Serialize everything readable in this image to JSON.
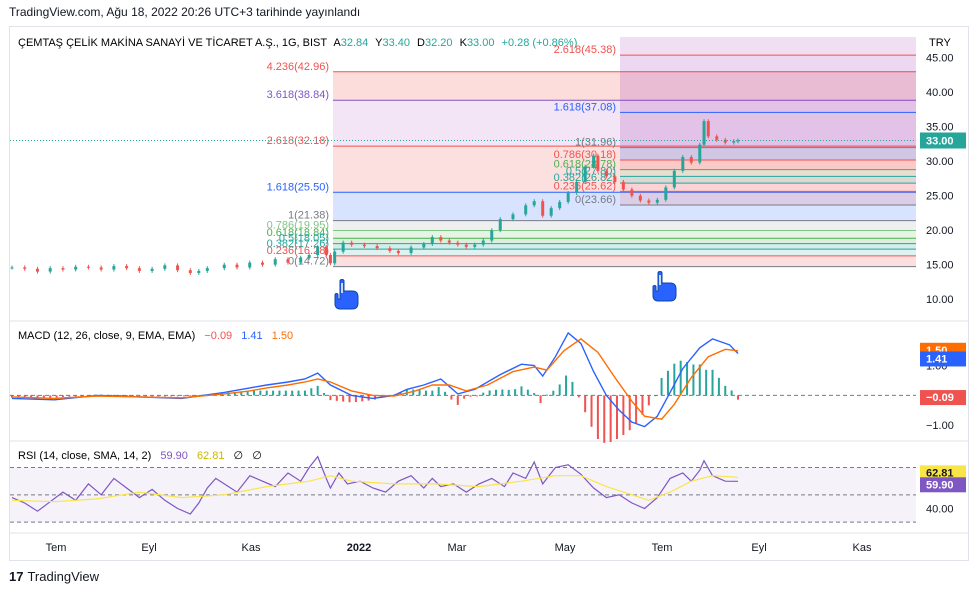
{
  "header": {
    "published": "TradingView.com, Ağu 18, 2022 20:26 UTC+3 tarihinde yayınlandı"
  },
  "footer": {
    "brand": "TradingView",
    "logo": "17"
  },
  "legend": {
    "symbol": "ÇEMTAŞ ÇELİK MAKİNA SANAYİ VE TİCARET A.Ş., 1G, BIST",
    "o_label": "A",
    "o": "32.84",
    "h_label": "Y",
    "h": "33.40",
    "l_label": "D",
    "l": "32.20",
    "c_label": "K",
    "c": "33.00",
    "change": "+0.28 (+0.86%)"
  },
  "currency": "TRY",
  "macd_legend": {
    "name": "MACD (12, 26, close, 9, EMA, EMA)",
    "v1": "−0.09",
    "v2": "1.41",
    "v3": "1.50"
  },
  "rsi_legend": {
    "name": "RSI (14, close, SMA, 14, 2)",
    "v1": "59.90",
    "v2": "62.81",
    "v3": "∅",
    "v4": "∅"
  },
  "colors": {
    "up": "#26a69a",
    "down": "#ef5350",
    "macd": "#2962ff",
    "signal": "#ff6d00",
    "rsi": "#7e57c2",
    "rsi_ma": "#f9e547"
  },
  "chart_data": [
    {
      "type": "candlestick",
      "title": "ÇEMTAŞ ÇELİK MAKİNA SANAYİ VE TİCARET A.Ş., 1G, BIST",
      "ylim": [
        8,
        48
      ],
      "y_ticks": [
        "45.00",
        "40.00",
        "35.00",
        "30.00",
        "25.00",
        "20.00",
        "15.00",
        "10.00"
      ],
      "x_ticks": [
        "Tem",
        "Eyl",
        "Kas",
        "2022",
        "Mar",
        "May",
        "Tem",
        "Eyl",
        "Kas"
      ],
      "last_price": "33.00",
      "price_path": [
        [
          0,
          14.6
        ],
        [
          6,
          14.4
        ],
        [
          12,
          14.0
        ],
        [
          18,
          14.5
        ],
        [
          24,
          14.3
        ],
        [
          30,
          14.7
        ],
        [
          36,
          14.6
        ],
        [
          42,
          14.3
        ],
        [
          48,
          14.8
        ],
        [
          54,
          14.5
        ],
        [
          60,
          14.1
        ],
        [
          66,
          14.4
        ],
        [
          72,
          14.9
        ],
        [
          78,
          14.2
        ],
        [
          84,
          13.8
        ],
        [
          88,
          14.1
        ],
        [
          92,
          14.5
        ],
        [
          100,
          15.0
        ],
        [
          106,
          14.6
        ],
        [
          112,
          15.3
        ],
        [
          118,
          15.0
        ],
        [
          124,
          15.8
        ],
        [
          130,
          15.3
        ],
        [
          136,
          16.0
        ],
        [
          140,
          16.4
        ],
        [
          144,
          17.6
        ],
        [
          148,
          16.4
        ],
        [
          150,
          15.2
        ],
        [
          152,
          16.9
        ],
        [
          156,
          18.2
        ],
        [
          160,
          17.9
        ],
        [
          166,
          17.7
        ],
        [
          172,
          17.4
        ],
        [
          178,
          17.0
        ],
        [
          182,
          16.7
        ],
        [
          188,
          17.5
        ],
        [
          194,
          18.0
        ],
        [
          198,
          19.0
        ],
        [
          202,
          18.5
        ],
        [
          206,
          18.2
        ],
        [
          210,
          17.9
        ],
        [
          214,
          17.6
        ],
        [
          218,
          17.9
        ],
        [
          222,
          18.5
        ],
        [
          226,
          20.0
        ],
        [
          230,
          21.6
        ],
        [
          236,
          22.3
        ],
        [
          242,
          23.6
        ],
        [
          246,
          24.2
        ],
        [
          250,
          22.1
        ],
        [
          254,
          23.2
        ],
        [
          258,
          24.1
        ],
        [
          262,
          25.4
        ],
        [
          266,
          27.0
        ],
        [
          270,
          29.2
        ],
        [
          274,
          30.8
        ],
        [
          276,
          28.6
        ],
        [
          280,
          27.8
        ],
        [
          284,
          27.0
        ],
        [
          288,
          25.9
        ],
        [
          292,
          25.0
        ],
        [
          296,
          24.3
        ],
        [
          300,
          24.0
        ],
        [
          304,
          24.4
        ],
        [
          308,
          26.2
        ],
        [
          312,
          28.6
        ],
        [
          316,
          30.6
        ],
        [
          320,
          29.8
        ],
        [
          324,
          32.4
        ],
        [
          326,
          35.8
        ],
        [
          328,
          33.6
        ],
        [
          332,
          33.1
        ],
        [
          336,
          32.7
        ],
        [
          340,
          32.9
        ],
        [
          342,
          33.0
        ]
      ],
      "fib_left": {
        "levels": [
          {
            "ratio": "4.236",
            "price": "42.96",
            "value": 42.96
          },
          {
            "ratio": "3.618",
            "price": "38.84",
            "value": 38.84
          },
          {
            "ratio": "2.618",
            "price": "32.18",
            "value": 32.18
          },
          {
            "ratio": "1.618",
            "price": "25.50",
            "value": 25.5
          },
          {
            "ratio": "1",
            "price": "21.38",
            "value": 21.38
          },
          {
            "ratio": "0.786",
            "price": "19.95",
            "value": 19.95
          },
          {
            "ratio": "0.618",
            "price": "18.84",
            "value": 18.84
          },
          {
            "ratio": "0.5",
            "price": "18.05",
            "value": 18.05
          },
          {
            "ratio": "0.382",
            "price": "17.26",
            "value": 17.26
          },
          {
            "ratio": "0.236",
            "price": "16.28",
            "value": 16.28
          },
          {
            "ratio": "0",
            "price": "14.72",
            "value": 14.72
          }
        ]
      },
      "fib_right": {
        "levels": [
          {
            "ratio": "2.618",
            "price": "45.38",
            "value": 45.38
          },
          {
            "ratio": "1.618",
            "price": "37.08",
            "value": 37.08
          },
          {
            "ratio": "1",
            "price": "31.96",
            "value": 31.96
          },
          {
            "ratio": "0.786",
            "price": "30.18",
            "value": 30.18
          },
          {
            "ratio": "0.618",
            "price": "28.78",
            "value": 28.78
          },
          {
            "ratio": "0.5",
            "price": "27.80",
            "value": 27.8
          },
          {
            "ratio": "0.382",
            "price": "26.82",
            "value": 26.82
          },
          {
            "ratio": "0.236",
            "price": "25.62",
            "value": 25.62
          },
          {
            "ratio": "0",
            "price": "23.66",
            "value": 23.66
          }
        ]
      }
    },
    {
      "type": "line",
      "title": "MACD (12, 26, close, 9, EMA, EMA)",
      "ylim": [
        -1.4,
        2.3
      ],
      "y_ticks": [
        "1.00",
        "−1.00"
      ],
      "badges": [
        {
          "label": "1.50",
          "value": 1.5,
          "color": "#ff6d00"
        },
        {
          "label": "1.41",
          "value": 1.41,
          "color": "#2962ff"
        },
        {
          "label": "−0.09",
          "value": -0.09,
          "color": "#ef5350"
        }
      ],
      "series": [
        {
          "name": "MACD",
          "color": "#2962ff",
          "points": [
            [
              0,
              -0.1
            ],
            [
              20,
              -0.15
            ],
            [
              40,
              0.0
            ],
            [
              60,
              -0.05
            ],
            [
              80,
              -0.1
            ],
            [
              100,
              0.1
            ],
            [
              112,
              0.25
            ],
            [
              120,
              0.35
            ],
            [
              130,
              0.45
            ],
            [
              138,
              0.55
            ],
            [
              144,
              0.75
            ],
            [
              150,
              0.35
            ],
            [
              160,
              0.0
            ],
            [
              170,
              -0.1
            ],
            [
              180,
              0.0
            ],
            [
              186,
              0.2
            ],
            [
              194,
              0.35
            ],
            [
              202,
              0.55
            ],
            [
              210,
              0.05
            ],
            [
              218,
              0.2
            ],
            [
              230,
              0.7
            ],
            [
              240,
              1.05
            ],
            [
              246,
              1.0
            ],
            [
              250,
              0.65
            ],
            [
              256,
              1.3
            ],
            [
              262,
              2.1
            ],
            [
              268,
              1.75
            ],
            [
              274,
              0.8
            ],
            [
              280,
              0.0
            ],
            [
              286,
              -0.5
            ],
            [
              292,
              -0.9
            ],
            [
              298,
              -1.05
            ],
            [
              304,
              -0.7
            ],
            [
              310,
              0.1
            ],
            [
              316,
              0.9
            ],
            [
              324,
              1.6
            ],
            [
              330,
              1.9
            ],
            [
              338,
              1.7
            ],
            [
              342,
              1.41
            ]
          ]
        },
        {
          "name": "Signal",
          "color": "#ff6d00",
          "points": [
            [
              0,
              -0.05
            ],
            [
              20,
              -0.1
            ],
            [
              40,
              -0.02
            ],
            [
              60,
              -0.05
            ],
            [
              80,
              -0.08
            ],
            [
              100,
              0.05
            ],
            [
              112,
              0.15
            ],
            [
              120,
              0.25
            ],
            [
              130,
              0.35
            ],
            [
              138,
              0.45
            ],
            [
              144,
              0.55
            ],
            [
              150,
              0.45
            ],
            [
              160,
              0.15
            ],
            [
              170,
              0.0
            ],
            [
              180,
              -0.02
            ],
            [
              190,
              0.15
            ],
            [
              198,
              0.35
            ],
            [
              206,
              0.35
            ],
            [
              214,
              0.15
            ],
            [
              224,
              0.35
            ],
            [
              236,
              0.8
            ],
            [
              246,
              0.95
            ],
            [
              252,
              0.85
            ],
            [
              260,
              1.5
            ],
            [
              268,
              1.9
            ],
            [
              276,
              1.45
            ],
            [
              284,
              0.6
            ],
            [
              292,
              -0.2
            ],
            [
              298,
              -0.7
            ],
            [
              306,
              -0.8
            ],
            [
              312,
              -0.3
            ],
            [
              320,
              0.6
            ],
            [
              328,
              1.3
            ],
            [
              336,
              1.55
            ],
            [
              342,
              1.5
            ]
          ]
        }
      ]
    },
    {
      "type": "line",
      "title": "RSI (14, close, SMA, 14, 2)",
      "ylim": [
        25,
        85
      ],
      "y_ticks": [
        "40.00"
      ],
      "badges": [
        {
          "label": "62.81",
          "value": 62.81,
          "color": "#f9e547"
        },
        {
          "label": "59.90",
          "value": 59.9,
          "color": "#7e57c2"
        }
      ],
      "bands": {
        "upper": 70,
        "middle": 50,
        "lower": 30
      },
      "series": [
        {
          "name": "RSI",
          "color": "#7e57c2",
          "points": [
            [
              0,
              48
            ],
            [
              6,
              44
            ],
            [
              12,
              38
            ],
            [
              18,
              45
            ],
            [
              24,
              52
            ],
            [
              30,
              46
            ],
            [
              36,
              58
            ],
            [
              42,
              50
            ],
            [
              48,
              62
            ],
            [
              54,
              55
            ],
            [
              60,
              48
            ],
            [
              66,
              54
            ],
            [
              72,
              46
            ],
            [
              78,
              40
            ],
            [
              84,
              36
            ],
            [
              88,
              44
            ],
            [
              92,
              55
            ],
            [
              96,
              62
            ],
            [
              100,
              58
            ],
            [
              106,
              52
            ],
            [
              112,
              64
            ],
            [
              118,
              60
            ],
            [
              124,
              56
            ],
            [
              130,
              66
            ],
            [
              136,
              60
            ],
            [
              140,
              70
            ],
            [
              144,
              78
            ],
            [
              148,
              62
            ],
            [
              150,
              55
            ],
            [
              154,
              66
            ],
            [
              158,
              58
            ],
            [
              164,
              60
            ],
            [
              170,
              55
            ],
            [
              176,
              52
            ],
            [
              182,
              60
            ],
            [
              188,
              64
            ],
            [
              194,
              55
            ],
            [
              198,
              62
            ],
            [
              202,
              56
            ],
            [
              208,
              58
            ],
            [
              214,
              52
            ],
            [
              220,
              58
            ],
            [
              226,
              62
            ],
            [
              232,
              56
            ],
            [
              236,
              66
            ],
            [
              242,
              62
            ],
            [
              246,
              74
            ],
            [
              250,
              58
            ],
            [
              256,
              70
            ],
            [
              262,
              72
            ],
            [
              268,
              65
            ],
            [
              274,
              55
            ],
            [
              280,
              48
            ],
            [
              286,
              50
            ],
            [
              292,
              44
            ],
            [
              298,
              40
            ],
            [
              304,
              48
            ],
            [
              310,
              62
            ],
            [
              316,
              66
            ],
            [
              320,
              60
            ],
            [
              324,
              68
            ],
            [
              326,
              75
            ],
            [
              330,
              64
            ],
            [
              336,
              60
            ],
            [
              342,
              59.9
            ]
          ]
        },
        {
          "name": "MA",
          "color": "#f9e547",
          "points": [
            [
              0,
              46
            ],
            [
              20,
              45
            ],
            [
              40,
              47
            ],
            [
              60,
              52
            ],
            [
              80,
              48
            ],
            [
              100,
              50
            ],
            [
              120,
              56
            ],
            [
              140,
              60
            ],
            [
              150,
              64
            ],
            [
              160,
              60
            ],
            [
              180,
              58
            ],
            [
              200,
              58
            ],
            [
              220,
              56
            ],
            [
              240,
              60
            ],
            [
              256,
              64
            ],
            [
              268,
              64
            ],
            [
              280,
              56
            ],
            [
              292,
              50
            ],
            [
              300,
              46
            ],
            [
              310,
              52
            ],
            [
              320,
              60
            ],
            [
              330,
              64
            ],
            [
              342,
              62.81
            ]
          ]
        }
      ]
    }
  ]
}
